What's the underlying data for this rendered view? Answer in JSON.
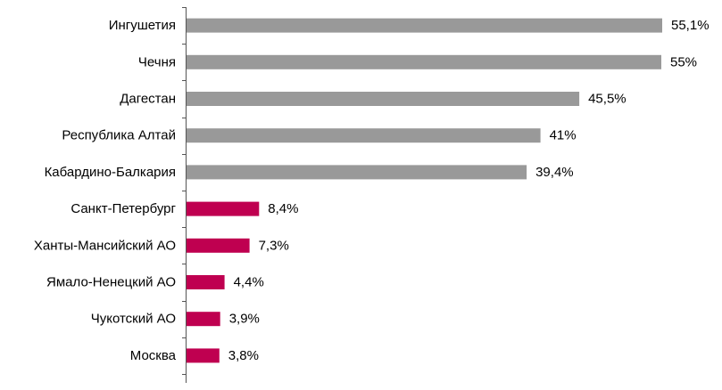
{
  "chart_data": {
    "type": "bar",
    "orientation": "horizontal",
    "categories": [
      "Ингушетия",
      "Чечня",
      "Дагестан",
      "Республика Алтай",
      "Кабардино-Балкария",
      "Санкт-Петербург",
      "Ханты-Мансийский АО",
      "Ямало-Ненецкий АО",
      "Чукотский АО",
      "Москва"
    ],
    "values": [
      55.1,
      55,
      45.5,
      41,
      39.4,
      8.4,
      7.3,
      4.4,
      3.9,
      3.8
    ],
    "value_labels": [
      "55,1%",
      "55%",
      "45,5%",
      "41%",
      "39,4%",
      "8,4%",
      "7,3%",
      "4,4%",
      "3,9%",
      "3,8%"
    ],
    "bar_colors": [
      "#999999",
      "#999999",
      "#999999",
      "#999999",
      "#999999",
      "#bf0050",
      "#bf0050",
      "#bf0050",
      "#bf0050",
      "#bf0050"
    ],
    "xlim": [
      0,
      55.1
    ],
    "grid": false,
    "legend": false,
    "title": "",
    "xlabel": "",
    "ylabel": ""
  }
}
